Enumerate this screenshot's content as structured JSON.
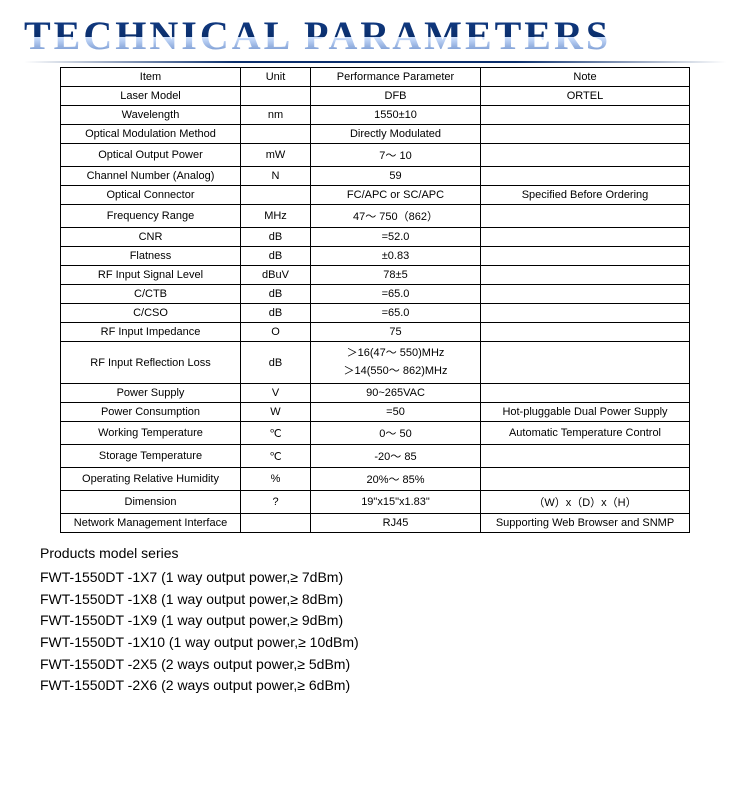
{
  "title": "TECHNICAL PARAMETERS",
  "columns": [
    "Item",
    "Unit",
    "Performance Parameter",
    "Note"
  ],
  "rows": [
    {
      "item": "Laser Model",
      "unit": "",
      "perf": "DFB",
      "note": "ORTEL"
    },
    {
      "item": "Wavelength",
      "unit": "nm",
      "perf": "1550±10",
      "note": ""
    },
    {
      "item": "Optical Modulation Method",
      "unit": "",
      "perf": "Directly Modulated",
      "note": ""
    },
    {
      "item": "Optical Output Power",
      "unit": "mW",
      "perf": "7～ 10",
      "note": ""
    },
    {
      "item": "Channel Number (Analog)",
      "unit": "N",
      "perf": "59",
      "note": ""
    },
    {
      "item": "Optical Connector",
      "unit": "",
      "perf": "FC/APC or SC/APC",
      "note": "Specified Before Ordering"
    },
    {
      "item": "Frequency Range",
      "unit": "MHz",
      "perf": "47～ 750（862）",
      "note": ""
    },
    {
      "item": "CNR",
      "unit": "dB",
      "perf": "=52.0",
      "note": ""
    },
    {
      "item": "Flatness",
      "unit": "dB",
      "perf": "±0.83",
      "note": ""
    },
    {
      "item": "RF Input Signal Level",
      "unit": "dBuV",
      "perf": "78±5",
      "note": ""
    },
    {
      "item": "C/CTB",
      "unit": "dB",
      "perf": "=65.0",
      "note": ""
    },
    {
      "item": "C/CSO",
      "unit": "dB",
      "perf": "=65.0",
      "note": ""
    },
    {
      "item": "RF Input Impedance",
      "unit": "O",
      "perf": "75",
      "note": ""
    },
    {
      "item": "RF Input Reflection Loss",
      "unit": "dB",
      "perf": "＞16(47～ 550)MHz\n＞14(550～ 862)MHz",
      "note": ""
    },
    {
      "item": "Power Supply",
      "unit": "V",
      "perf": "90~265VAC",
      "note": ""
    },
    {
      "item": "Power Consumption",
      "unit": "W",
      "perf": "=50",
      "note": "Hot-pluggable Dual Power Supply"
    },
    {
      "item": "Working Temperature",
      "unit": "℃",
      "perf": "0～ 50",
      "note": "Automatic Temperature Control"
    },
    {
      "item": "Storage Temperature",
      "unit": "℃",
      "perf": "-20～ 85",
      "note": ""
    },
    {
      "item": "Operating Relative Humidity",
      "unit": "%",
      "perf": "20%～ 85%",
      "note": ""
    },
    {
      "item": "Dimension",
      "unit": "?",
      "perf": "19\"x15\"x1.83\"",
      "note": "（W）x（D）x（H）"
    },
    {
      "item": "Network Management Interface",
      "unit": "",
      "perf": "RJ45",
      "note": "Supporting Web Browser and SNMP"
    }
  ],
  "models_title": "Products model series",
  "models": [
    "FWT-1550DT -1X7 (1 way output power,≥ 7dBm)",
    "FWT-1550DT -1X8 (1 way output power,≥ 8dBm)",
    "FWT-1550DT -1X9 (1 way output power,≥ 9dBm)",
    "FWT-1550DT -1X10 (1 way output power,≥ 10dBm)",
    "FWT-1550DT -2X5 (2 ways output power,≥ 5dBm)",
    "FWT-1550DT -2X6 (2 ways output power,≥ 6dBm)"
  ]
}
